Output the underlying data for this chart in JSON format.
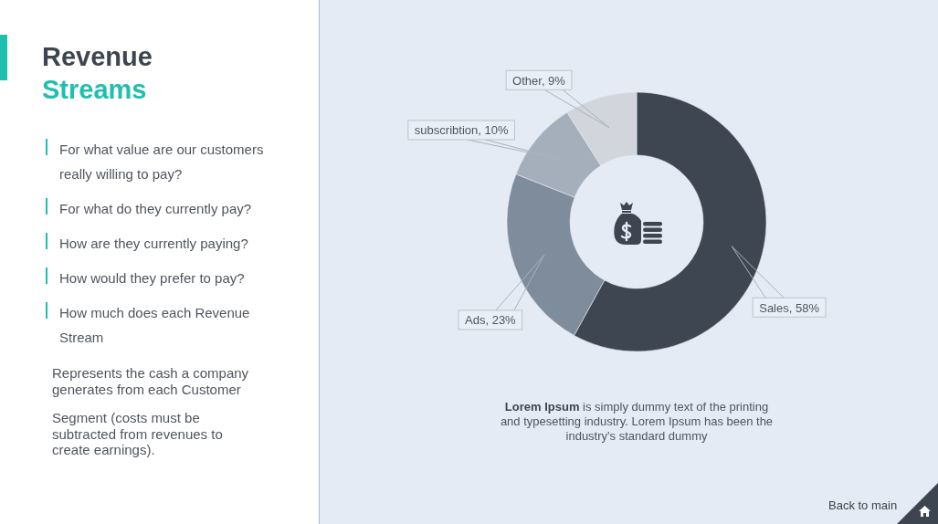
{
  "chart_data": {
    "type": "donut",
    "title": "Revenue Streams",
    "categories": [
      "Sales",
      "Ads",
      "subscribtion",
      "Other"
    ],
    "values": [
      58,
      23,
      10,
      9
    ],
    "colors": [
      "#3e4651",
      "#7f8c9c",
      "#a5afbc",
      "#d2d6dc"
    ],
    "value_labels": [
      "58%",
      "23%",
      "10%",
      "9%"
    ],
    "annotations": [
      "For what value are our customers really willing to pay?",
      "For what do they currently pay?",
      "How are they currently paying?",
      "How would they prefer to pay?",
      "How much does each Revenue Stream",
      "Represents the cash a company generates from each Customer",
      "Segment (costs must be subtracted from revenues to create earnings).",
      "Lorem Ipsum is simply dummy text of the printing and typesetting industry. Lorem Ipsum has been the industry's standard dummy",
      "Back to main"
    ]
  }
}
